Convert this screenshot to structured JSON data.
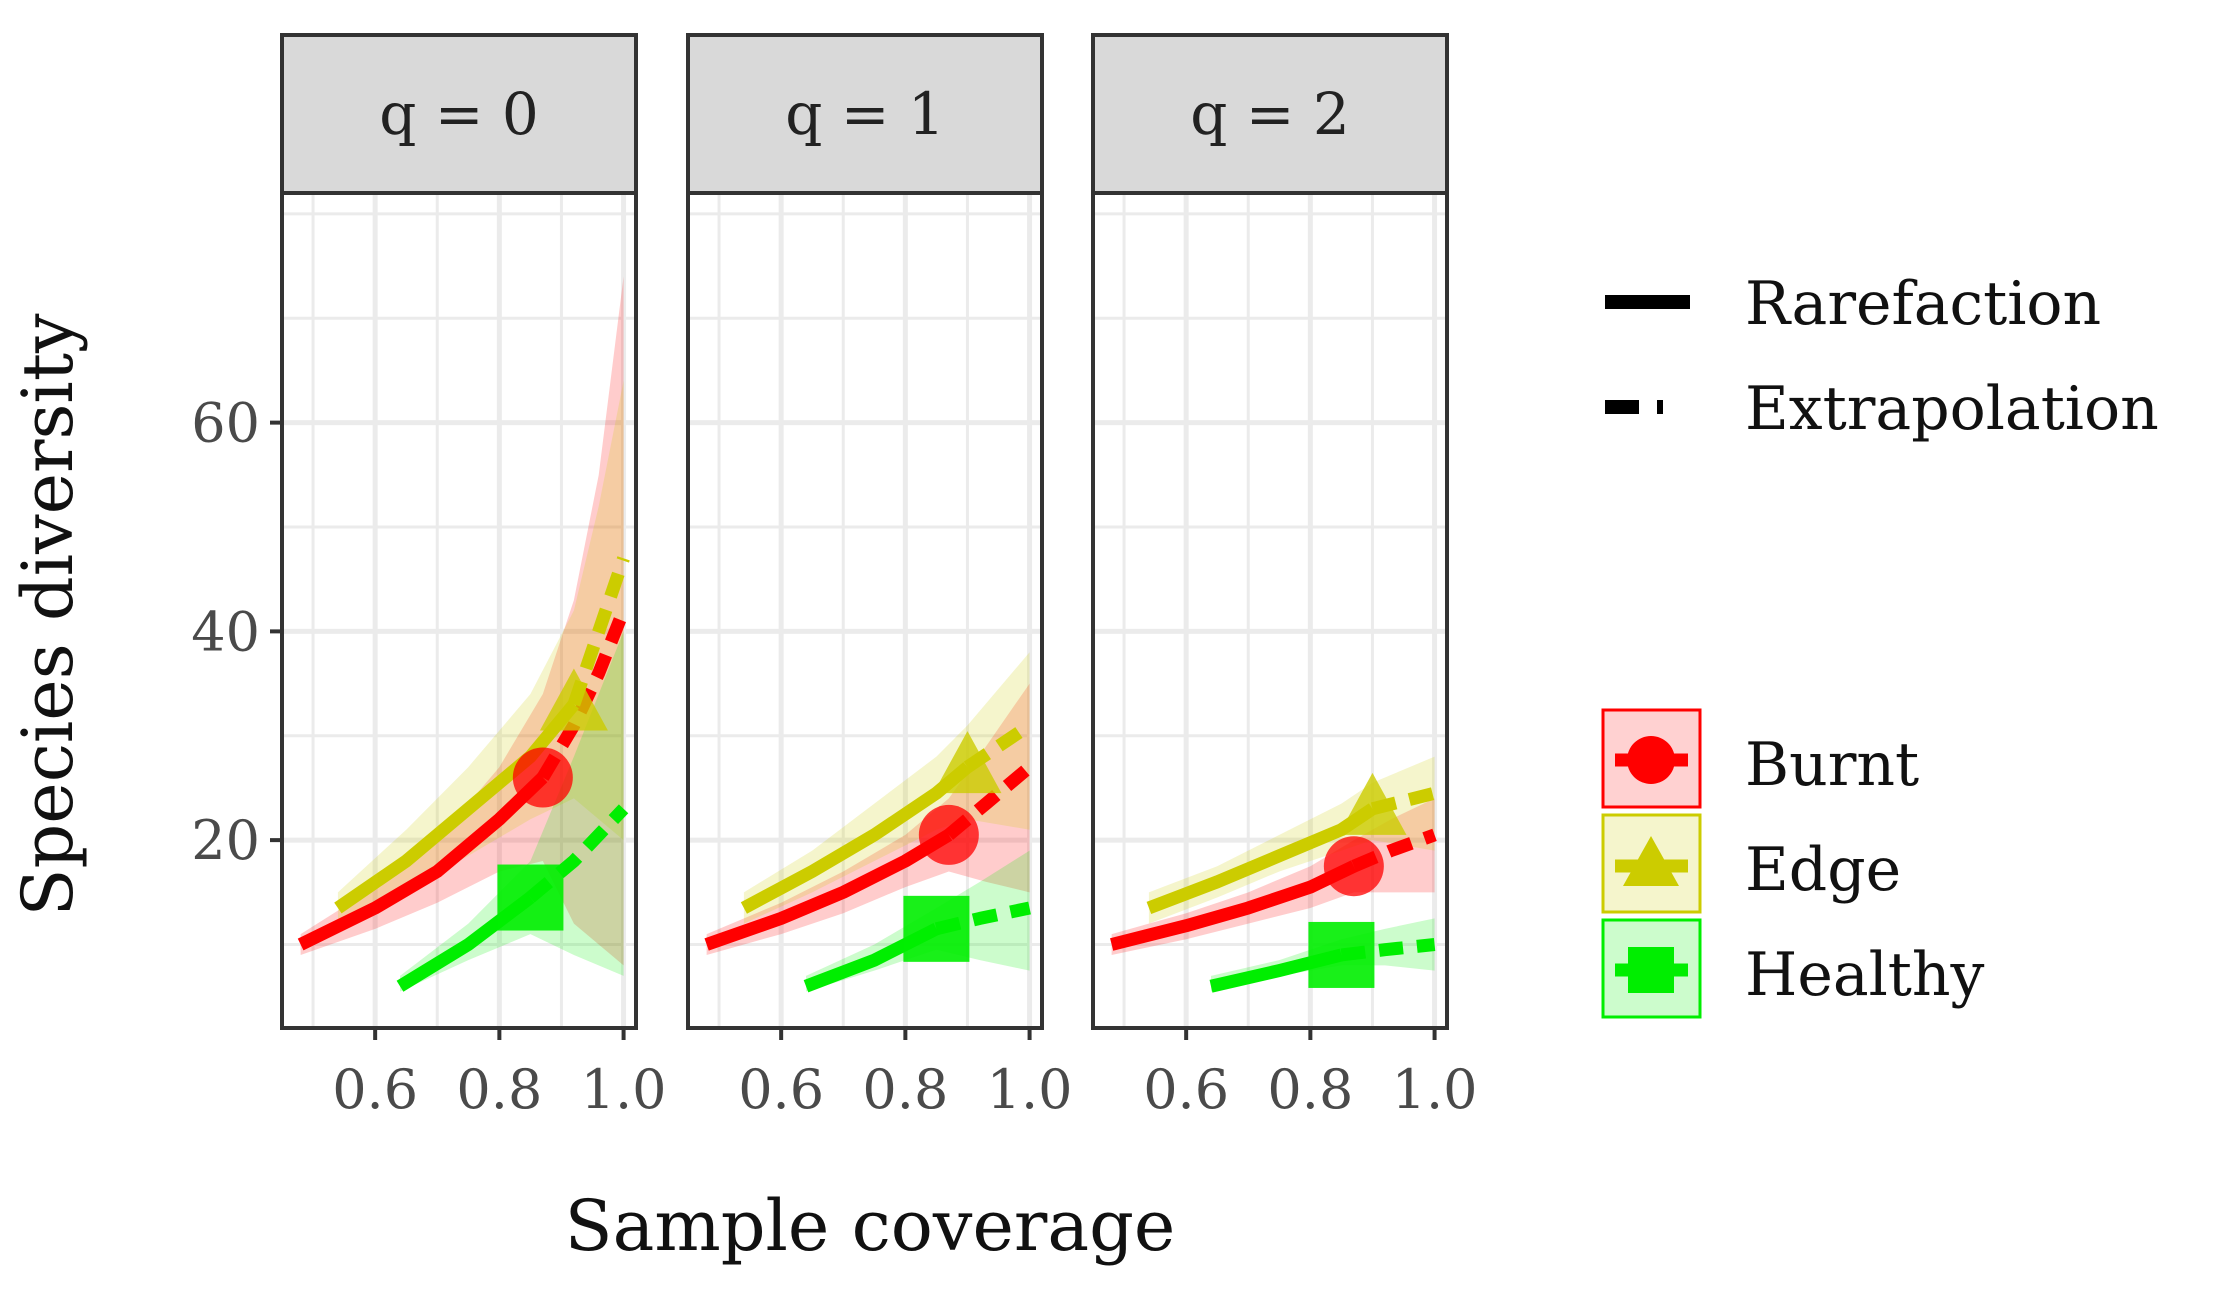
{
  "chart_data": {
    "type": "line",
    "xlabel": "Sample coverage",
    "ylabel": "Species diversity",
    "xlim": [
      0.45,
      1.02
    ],
    "ylim": [
      2,
      82
    ],
    "xticks": [
      0.6,
      0.8,
      1.0
    ],
    "xtick_labels": [
      "0.6",
      "0.8",
      "1.0"
    ],
    "yticks": [
      20,
      40,
      60
    ],
    "ytick_labels": [
      "20",
      "40",
      "60"
    ],
    "grid": true,
    "colors": {
      "Burnt": "#ff0000",
      "Edge": "#cccc00",
      "Healthy": "#00ee00"
    },
    "method_legend": [
      "Rarefaction",
      "Extrapolation"
    ],
    "group_legend": [
      "Burnt",
      "Edge",
      "Healthy"
    ],
    "panels": [
      {
        "title": "q = 0",
        "series": [
          {
            "name": "Burnt",
            "rare_x": [
              0.48,
              0.6,
              0.7,
              0.8,
              0.87
            ],
            "rare_y": [
              10,
              13.5,
              17,
              22,
              26
            ],
            "extra_x": [
              0.87,
              0.92,
              0.96,
              1.0
            ],
            "extra_y": [
              26,
              31,
              36,
              42
            ],
            "obs_x": 0.87,
            "obs_y": 26,
            "ci_x": [
              0.48,
              0.6,
              0.7,
              0.8,
              0.87,
              0.92,
              0.96,
              1.0
            ],
            "ci_lo": [
              9,
              11.5,
              14,
              17,
              18,
              12,
              10,
              8
            ],
            "ci_hi": [
              11,
              15.5,
              20,
              27,
              34,
              43,
              55,
              74
            ]
          },
          {
            "name": "Edge",
            "rare_x": [
              0.54,
              0.65,
              0.75,
              0.85,
              0.92
            ],
            "rare_y": [
              13.5,
              18,
              23,
              28,
              33
            ],
            "extra_x": [
              0.92,
              0.96,
              1.0
            ],
            "extra_y": [
              33,
              40,
              47
            ],
            "obs_x": 0.92,
            "obs_y": 33,
            "ci_x": [
              0.54,
              0.65,
              0.75,
              0.85,
              0.92,
              0.96,
              1.0
            ],
            "ci_lo": [
              12,
              15,
              18.5,
              22,
              24,
              22,
              20
            ],
            "ci_hi": [
              15,
              21,
              27,
              34,
              42,
              52,
              64
            ]
          },
          {
            "name": "Healthy",
            "rare_x": [
              0.64,
              0.75,
              0.85
            ],
            "rare_y": [
              6,
              10,
              14.5
            ],
            "extra_x": [
              0.85,
              0.92,
              1.0
            ],
            "extra_y": [
              14.5,
              18,
              23
            ],
            "obs_x": 0.85,
            "obs_y": 14.5,
            "ci_x": [
              0.64,
              0.75,
              0.85,
              0.92,
              1.0
            ],
            "ci_lo": [
              5.5,
              8.5,
              11,
              9,
              7
            ],
            "ci_hi": [
              7,
              12,
              18,
              28,
              40
            ]
          }
        ]
      },
      {
        "title": "q = 1",
        "series": [
          {
            "name": "Burnt",
            "rare_x": [
              0.48,
              0.6,
              0.7,
              0.8,
              0.87
            ],
            "rare_y": [
              10,
              12.5,
              15,
              18,
              20.5
            ],
            "extra_x": [
              0.87,
              0.93,
              1.0
            ],
            "extra_y": [
              20.5,
              23.5,
              27
            ],
            "obs_x": 0.87,
            "obs_y": 20.5,
            "ci_x": [
              0.48,
              0.6,
              0.7,
              0.8,
              0.87,
              0.93,
              1.0
            ],
            "ci_lo": [
              9,
              11,
              13,
              15.5,
              17,
              16,
              15
            ],
            "ci_hi": [
              11,
              14,
              17,
              20.5,
              24,
              29,
              35
            ]
          },
          {
            "name": "Edge",
            "rare_x": [
              0.54,
              0.65,
              0.75,
              0.85,
              0.9
            ],
            "rare_y": [
              13.5,
              17,
              20.5,
              24.5,
              27
            ],
            "extra_x": [
              0.9,
              1.0
            ],
            "extra_y": [
              27,
              31
            ],
            "obs_x": 0.9,
            "obs_y": 27,
            "ci_x": [
              0.54,
              0.65,
              0.75,
              0.85,
              0.9,
              1.0
            ],
            "ci_lo": [
              12,
              15,
              18,
              21,
              22,
              21
            ],
            "ci_hi": [
              15,
              19,
              23.5,
              28,
              31,
              38
            ]
          },
          {
            "name": "Healthy",
            "rare_x": [
              0.64,
              0.75,
              0.85
            ],
            "rare_y": [
              6,
              8.5,
              11.5
            ],
            "extra_x": [
              0.85,
              0.92,
              1.0
            ],
            "extra_y": [
              11.5,
              12.5,
              13.5
            ],
            "obs_x": 0.85,
            "obs_y": 11.5,
            "ci_x": [
              0.64,
              0.75,
              0.85,
              0.92,
              1.0
            ],
            "ci_lo": [
              5.5,
              7.5,
              9.5,
              8.5,
              7.5
            ],
            "ci_hi": [
              7,
              10,
              13.5,
              16,
              19
            ]
          }
        ]
      },
      {
        "title": "q = 2",
        "series": [
          {
            "name": "Burnt",
            "rare_x": [
              0.48,
              0.6,
              0.7,
              0.8,
              0.87
            ],
            "rare_y": [
              10,
              11.8,
              13.5,
              15.5,
              17.5
            ],
            "extra_x": [
              0.87,
              0.93,
              1.0
            ],
            "extra_y": [
              17.5,
              19,
              20.5
            ],
            "obs_x": 0.87,
            "obs_y": 17.5,
            "ci_x": [
              0.48,
              0.6,
              0.7,
              0.8,
              0.87,
              0.93,
              1.0
            ],
            "ci_lo": [
              9,
              10.5,
              12,
              13.5,
              15,
              15,
              15
            ],
            "ci_hi": [
              11,
              13,
              15,
              17.5,
              20,
              22,
              24
            ]
          },
          {
            "name": "Edge",
            "rare_x": [
              0.54,
              0.65,
              0.75,
              0.85,
              0.9
            ],
            "rare_y": [
              13.5,
              16,
              18.5,
              21,
              23
            ],
            "extra_x": [
              0.9,
              1.0
            ],
            "extra_y": [
              23,
              24.5
            ],
            "obs_x": 0.9,
            "obs_y": 23,
            "ci_x": [
              0.54,
              0.65,
              0.75,
              0.85,
              0.9,
              1.0
            ],
            "ci_lo": [
              12,
              14.5,
              17,
              19,
              20,
              19
            ],
            "ci_hi": [
              15,
              17.5,
              20.5,
              23.5,
              25.5,
              28
            ]
          },
          {
            "name": "Healthy",
            "rare_x": [
              0.64,
              0.75,
              0.85
            ],
            "rare_y": [
              6,
              7.5,
              9
            ],
            "extra_x": [
              0.85,
              0.92,
              1.0
            ],
            "extra_y": [
              9,
              9.5,
              10
            ],
            "obs_x": 0.85,
            "obs_y": 9,
            "ci_x": [
              0.64,
              0.75,
              0.85,
              0.92,
              1.0
            ],
            "ci_lo": [
              5.5,
              7,
              8,
              8,
              7.5
            ],
            "ci_hi": [
              7,
              8.5,
              10.5,
              11.5,
              12.5
            ]
          }
        ]
      }
    ]
  }
}
